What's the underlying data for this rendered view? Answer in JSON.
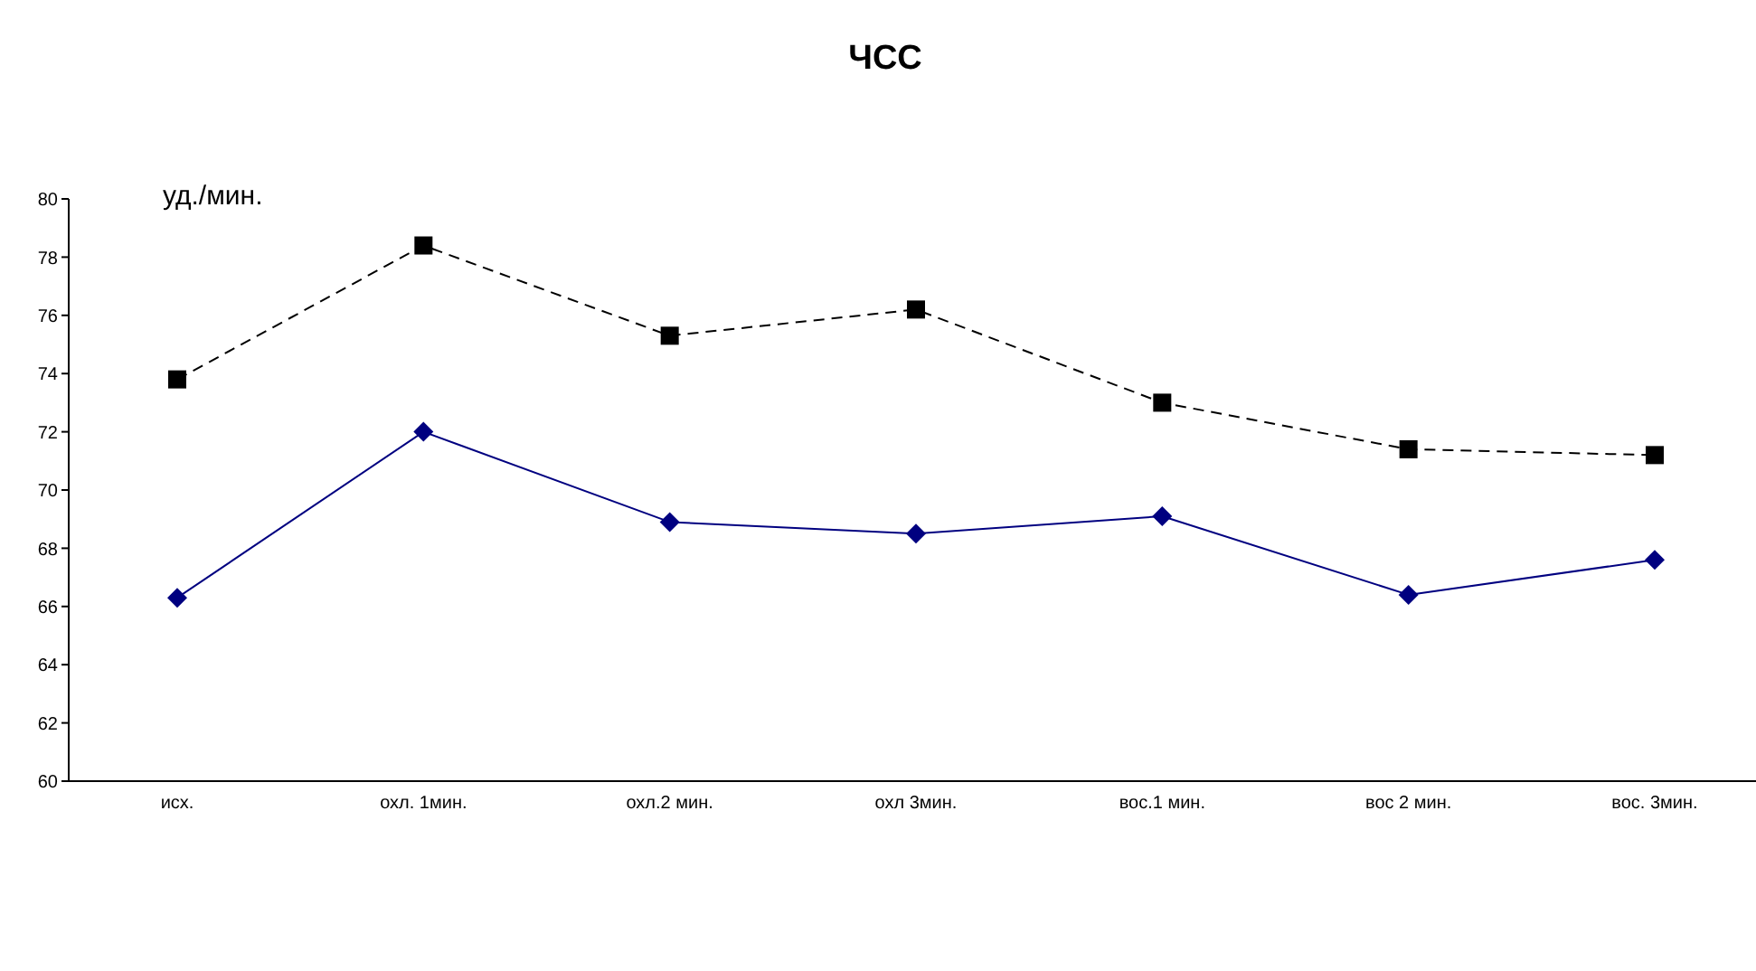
{
  "chart_data": {
    "type": "line",
    "title": "ЧСС",
    "ylabel": "уд./мин.",
    "categories": [
      "исх.",
      "охл. 1мин.",
      "охл.2 мин.",
      "охл 3мин.",
      "вос.1 мин.",
      "вос 2 мин.",
      "вос. 3мин."
    ],
    "series": [
      {
        "color": "#000000",
        "line_style": "dashed",
        "marker": "square",
        "values": [
          73.8,
          78.4,
          75.3,
          76.2,
          73.0,
          71.4,
          71.2
        ]
      },
      {
        "color": "#000080",
        "line_style": "solid",
        "marker": "diamond",
        "values": [
          66.3,
          72.0,
          68.9,
          68.5,
          69.1,
          66.4,
          67.6
        ]
      }
    ],
    "ylim": [
      60,
      80
    ],
    "yticks": [
      60,
      62,
      64,
      66,
      68,
      70,
      72,
      74,
      76,
      78,
      80
    ],
    "grid": false,
    "legend": false
  }
}
